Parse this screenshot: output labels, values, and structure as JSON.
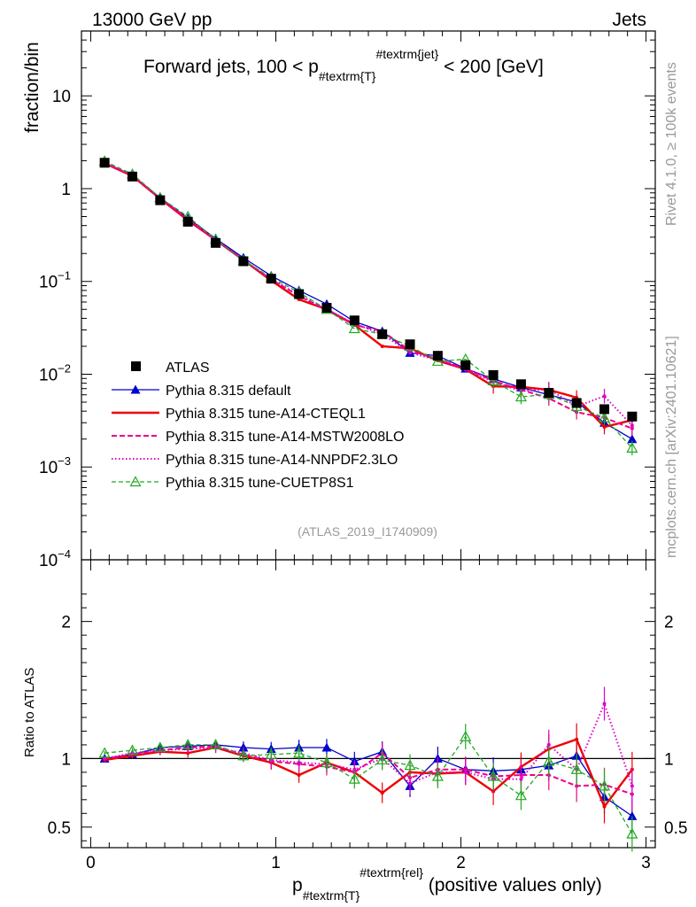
{
  "header": {
    "left": "13000 GeV pp",
    "right": "Jets",
    "side_top": "Rivet 4.1.0, ≥ 100k events",
    "side_bottom": "mcplots.cern.ch [arXiv:2401.10621]"
  },
  "chart_data": [
    {
      "type": "line",
      "panel": "main",
      "title_prefix": "Forward jets, 100 < p",
      "title_sub": "#textrm{T}",
      "title_sup": "#textrm{jet}",
      "title_suffix": " < 200 [GeV]",
      "ylabel": "fraction/bin",
      "yscale": "log",
      "ylim": [
        0.0001,
        50
      ],
      "xlim": [
        -0.05,
        3.05
      ],
      "yticks": [
        {
          "v": 10,
          "base": "10",
          "exp": ""
        },
        {
          "v": 1,
          "base": "1",
          "exp": ""
        },
        {
          "v": 0.1,
          "base": "10",
          "exp": "−1"
        },
        {
          "v": 0.01,
          "base": "10",
          "exp": "−2"
        },
        {
          "v": 0.001,
          "base": "10",
          "exp": "−3"
        },
        {
          "v": 0.0001,
          "base": "10",
          "exp": "−4"
        }
      ],
      "watermark": "(ATLAS_2019_I1740909)",
      "x": [
        0.075,
        0.225,
        0.375,
        0.525,
        0.675,
        0.825,
        0.975,
        1.125,
        1.275,
        1.425,
        1.575,
        1.725,
        1.875,
        2.025,
        2.175,
        2.325,
        2.475,
        2.625,
        2.775,
        2.925
      ],
      "series": [
        {
          "name": "ATLAS",
          "color": "#000000",
          "style": "data",
          "values": [
            1.9,
            1.35,
            0.75,
            0.44,
            0.26,
            0.165,
            0.107,
            0.073,
            0.052,
            0.038,
            0.027,
            0.021,
            0.0158,
            0.0125,
            0.0098,
            0.0078,
            0.0063,
            0.0049,
            0.0042,
            0.0035
          ]
        },
        {
          "name": "Pythia 8.315 default",
          "color": "#0000cc",
          "style": "blue",
          "values": [
            1.88,
            1.38,
            0.8,
            0.48,
            0.29,
            0.18,
            0.115,
            0.08,
            0.057,
            0.037,
            0.029,
            0.017,
            0.0158,
            0.0115,
            0.0089,
            0.0072,
            0.006,
            0.005,
            0.003,
            0.002
          ]
        },
        {
          "name": "Pythia 8.315 tune-A14-CTEQL1",
          "color": "#ee0000",
          "style": "red",
          "values": [
            1.88,
            1.37,
            0.78,
            0.455,
            0.28,
            0.17,
            0.102,
            0.064,
            0.05,
            0.034,
            0.02,
            0.019,
            0.014,
            0.0113,
            0.0074,
            0.0073,
            0.0068,
            0.0056,
            0.0027,
            0.0032
          ]
        },
        {
          "name": "Pythia 8.315 tune-A14-MSTW2008LO",
          "color": "#ee0088",
          "style": "magenta",
          "values": [
            1.9,
            1.38,
            0.79,
            0.47,
            0.28,
            0.17,
            0.105,
            0.07,
            0.049,
            0.034,
            0.029,
            0.018,
            0.0145,
            0.0115,
            0.0085,
            0.0068,
            0.0055,
            0.0039,
            0.0034,
            0.0026
          ]
        },
        {
          "name": "Pythia 8.315 tune-A14-NNPDF2.3LO",
          "color": "#dd00cc",
          "style": "dotted",
          "values": [
            1.9,
            1.4,
            0.79,
            0.47,
            0.28,
            0.17,
            0.106,
            0.071,
            0.05,
            0.035,
            0.027,
            0.017,
            0.0142,
            0.0112,
            0.0083,
            0.0066,
            0.0069,
            0.0045,
            0.0058,
            0.0028
          ]
        },
        {
          "name": "Pythia 8.315 tune-CUETP8S1",
          "color": "#22aa22",
          "style": "green",
          "values": [
            1.98,
            1.43,
            0.8,
            0.5,
            0.285,
            0.168,
            0.11,
            0.076,
            0.05,
            0.031,
            0.027,
            0.02,
            0.0138,
            0.0145,
            0.0085,
            0.0057,
            0.0061,
            0.0045,
            0.0034,
            0.0016
          ]
        }
      ]
    },
    {
      "type": "line",
      "panel": "ratio",
      "ylabel": "Ratio to ATLAS",
      "ylim": [
        0.35,
        2.45
      ],
      "yticks": [
        0.5,
        1,
        2
      ],
      "xlim": [
        -0.05,
        3.05
      ],
      "xticks": [
        0,
        1,
        2,
        3
      ],
      "xlabel_prefix": "p",
      "xlabel_sub": "#textrm{T}",
      "xlabel_sup": "#textrm{rel}",
      "xlabel_suffix": " (positive values only)",
      "x": [
        0.075,
        0.225,
        0.375,
        0.525,
        0.675,
        0.825,
        0.975,
        1.125,
        1.275,
        1.425,
        1.575,
        1.725,
        1.875,
        2.025,
        2.175,
        2.325,
        2.475,
        2.625,
        2.775,
        2.925
      ],
      "series": [
        {
          "name": "Pythia 8.315 default",
          "values": [
            1.0,
            1.03,
            1.08,
            1.09,
            1.1,
            1.08,
            1.07,
            1.08,
            1.08,
            0.98,
            1.05,
            0.8,
            1.0,
            0.92,
            0.91,
            0.92,
            0.95,
            1.02,
            0.72,
            0.58
          ]
        },
        {
          "name": "Pythia 8.315 tune-A14-CTEQL1",
          "values": [
            0.99,
            1.02,
            1.05,
            1.04,
            1.08,
            1.02,
            0.97,
            0.88,
            0.97,
            0.9,
            0.75,
            0.9,
            0.89,
            0.9,
            0.76,
            0.94,
            1.07,
            1.14,
            0.65,
            0.92
          ]
        },
        {
          "name": "Pythia 8.315 tune-A14-MSTW2008LO",
          "values": [
            1.0,
            1.03,
            1.06,
            1.08,
            1.09,
            1.03,
            0.98,
            0.96,
            0.94,
            0.9,
            1.04,
            0.86,
            0.92,
            0.92,
            0.87,
            0.88,
            0.88,
            0.8,
            0.81,
            0.74
          ]
        },
        {
          "name": "Pythia 8.315 tune-A14-NNPDF2.3LO",
          "values": [
            1.0,
            1.04,
            1.06,
            1.07,
            1.08,
            1.04,
            0.99,
            0.97,
            0.96,
            0.92,
            1.0,
            0.82,
            0.9,
            0.9,
            0.85,
            0.85,
            1.1,
            0.92,
            1.4,
            0.8
          ]
        },
        {
          "name": "Pythia 8.315 tune-CUETP8S1",
          "values": [
            1.04,
            1.06,
            1.08,
            1.1,
            1.1,
            1.02,
            1.03,
            1.04,
            0.97,
            0.85,
            0.99,
            0.95,
            0.87,
            1.16,
            0.87,
            0.73,
            0.98,
            0.92,
            0.8,
            0.45
          ]
        }
      ]
    }
  ]
}
